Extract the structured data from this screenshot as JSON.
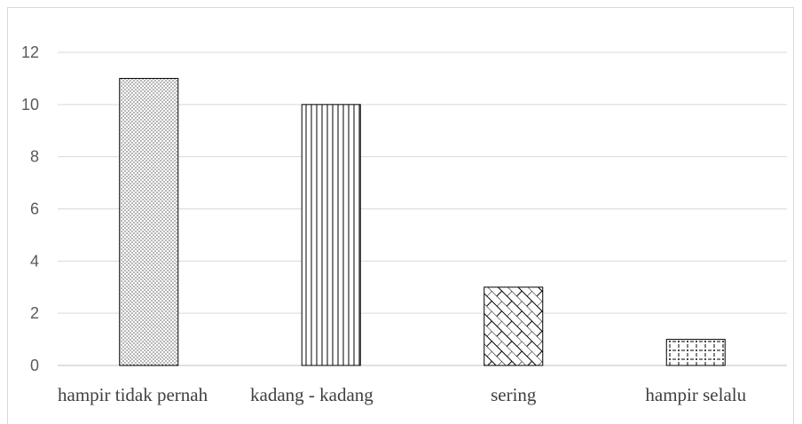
{
  "chart_data": {
    "type": "bar",
    "title": "",
    "xlabel": "",
    "ylabel": "",
    "categories": [
      "hampir tidak pernah",
      "kadang - kadang",
      "sering",
      "hampir selalu"
    ],
    "values": [
      11,
      10,
      3,
      1
    ],
    "ylim": [
      0,
      12
    ],
    "yticks": [
      0,
      2,
      4,
      6,
      8,
      10,
      12
    ],
    "ytick_labels": [
      "0",
      "2",
      "4",
      "6",
      "8",
      "10",
      "12"
    ],
    "grid": true,
    "legend": "none",
    "patterns": [
      "dotted",
      "vertical-lines",
      "brick-diagonal",
      "dashed-grid"
    ],
    "colors": {
      "bar_fill": "#ffffff",
      "bar_pattern": "#000000",
      "gridline": "#d9d9d9",
      "tick_text": "#595959",
      "category_text": "#404040"
    }
  }
}
